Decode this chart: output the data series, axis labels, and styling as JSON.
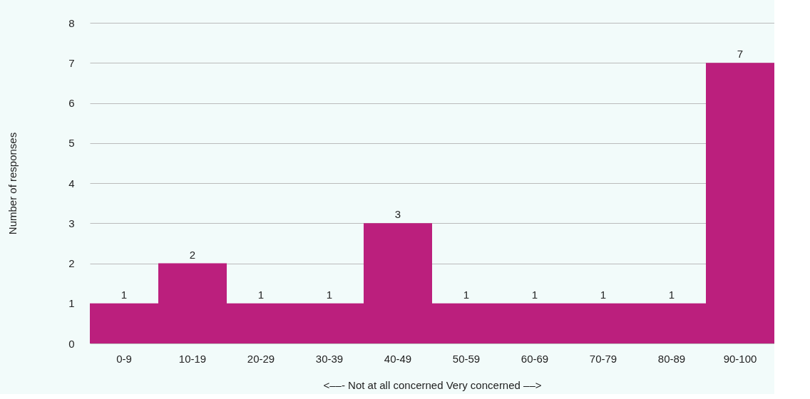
{
  "chart_data": {
    "type": "bar",
    "categories": [
      "0-9",
      "10-19",
      "20-29",
      "30-39",
      "40-49",
      "50-59",
      "60-69",
      "70-79",
      "80-89",
      "90-100"
    ],
    "values": [
      1,
      2,
      1,
      1,
      3,
      1,
      1,
      1,
      1,
      7
    ],
    "color": "#bb1f7d",
    "xlabel": "<––- Not at all concerned          Very concerned ––>",
    "ylabel": "Number of responses",
    "ylim": [
      0,
      8
    ],
    "yticks": [
      0,
      1,
      2,
      3,
      4,
      5,
      6,
      7,
      8
    ],
    "grid": "y",
    "data_labels": true
  }
}
